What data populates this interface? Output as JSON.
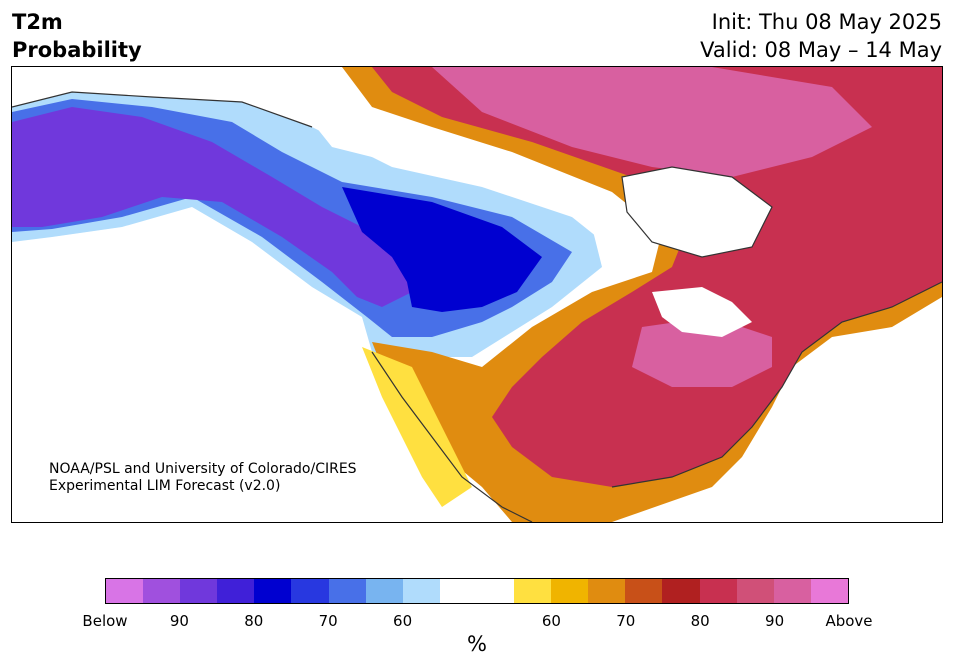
{
  "header": {
    "title_line1": "T2m",
    "title_line2": "Probability",
    "init_label": "Init: Thu 08 May 2025",
    "valid_label": "Valid: 08 May – 14 May"
  },
  "map": {
    "credit_line1": "NOAA/PSL and University of Colorado/CIRES",
    "credit_line2": "Experimental LIM Forecast (v2.0)"
  },
  "colorbar": {
    "colors": [
      "#d874e6",
      "#a050de",
      "#7038dc",
      "#4020d8",
      "#0000d0",
      "#2838e0",
      "#4870e8",
      "#78b4f0",
      "#b0dcfc",
      "#ffffff",
      "#ffffff",
      "#ffe040",
      "#f0b400",
      "#e08c10",
      "#c85018",
      "#b02020",
      "#c83050",
      "#d05078",
      "#d860a0",
      "#e878d8"
    ],
    "tick_labels": [
      "Below",
      "90",
      "80",
      "70",
      "60",
      "60",
      "70",
      "80",
      "90",
      "Above"
    ],
    "unit": "%"
  },
  "legend_meaning": {
    "cool_side": "Below",
    "warm_side": "Above"
  }
}
